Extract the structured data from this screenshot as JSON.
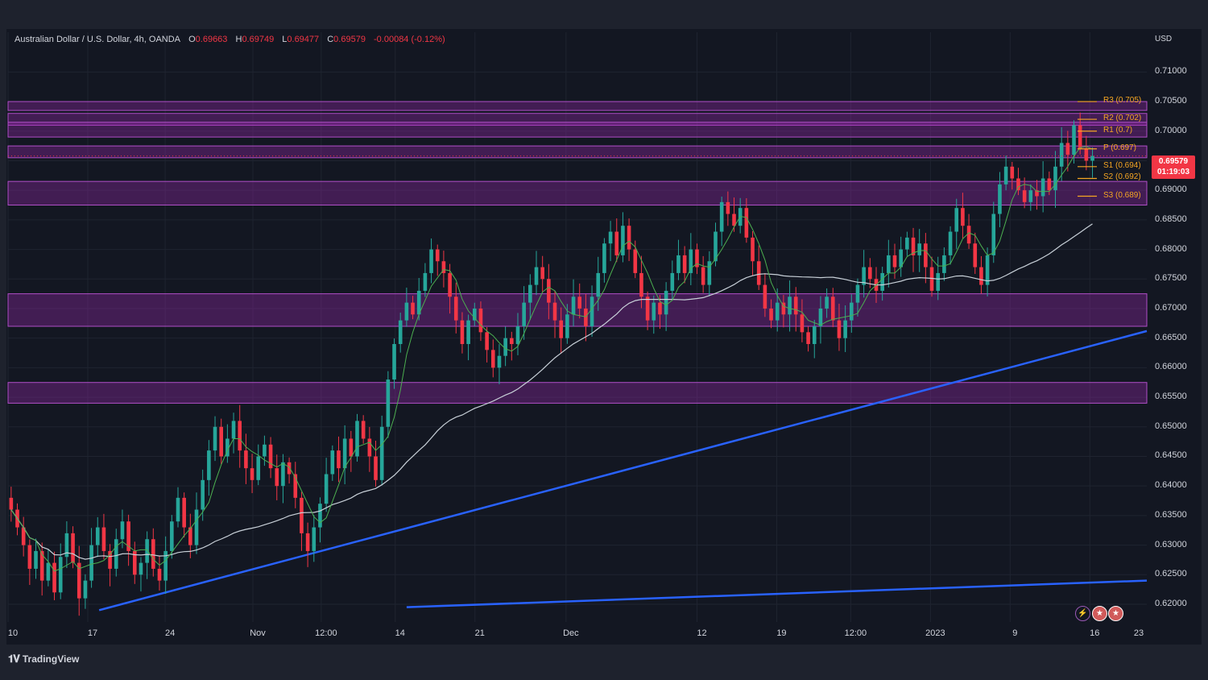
{
  "header": {
    "symbol": "Australian Dollar / U.S. Dollar, 4h, OANDA",
    "open_label": "O",
    "open": "0.69663",
    "high_label": "H",
    "high": "0.69749",
    "low_label": "L",
    "low": "0.69477",
    "close_label": "C",
    "close": "0.69579",
    "change": "-0.00084 (-0.12%)"
  },
  "currency": "USD",
  "last_price": {
    "value": "0.69579",
    "countdown": "01:19:03"
  },
  "pivots": [
    {
      "label": "R3 (0.705)",
      "value": 0.705
    },
    {
      "label": "R2 (0.702)",
      "value": 0.702
    },
    {
      "label": "R1 (0.7)",
      "value": 0.7
    },
    {
      "label": "P (0.697)",
      "value": 0.697
    },
    {
      "label": "S1 (0.694)",
      "value": 0.694
    },
    {
      "label": "S2 (0.692)",
      "value": 0.692
    },
    {
      "label": "S3 (0.689)",
      "value": 0.689
    }
  ],
  "brand": {
    "logo_text": "TradingView"
  },
  "icons": [
    "lightning-icon",
    "us-flag-icon",
    "us-flag-icon"
  ],
  "colors": {
    "bull": "#26a69a",
    "bear": "#f23645",
    "zone": "#9c27b0",
    "trend": "#2962ff",
    "pivot": "#f5a623",
    "ma_fast": "#4caf50",
    "ma_slow": "#c8d0d8"
  },
  "chart_data": {
    "type": "candlestick",
    "title": "Australian Dollar / U.S. Dollar, 4h, OANDA",
    "ylim": [
      0.617,
      0.714
    ],
    "y_ticks": [
      "0.71000",
      "0.70500",
      "0.70000",
      "0.69500",
      "0.69000",
      "0.68500",
      "0.68000",
      "0.67500",
      "0.67000",
      "0.66500",
      "0.66000",
      "0.65500",
      "0.65000",
      "0.64500",
      "0.64000",
      "0.63500",
      "0.63000",
      "0.62500",
      "0.62000"
    ],
    "x_ticks": [
      "10",
      "17",
      "24",
      "Nov",
      "12:00",
      "14",
      "21",
      "Dec",
      "12",
      "19",
      "12:00",
      "2023",
      "9",
      "16",
      "23"
    ],
    "x_tick_pos": [
      0.0,
      0.07,
      0.138,
      0.215,
      0.275,
      0.34,
      0.41,
      0.49,
      0.605,
      0.675,
      0.74,
      0.81,
      0.88,
      0.95,
      1.02
    ],
    "zones": [
      [
        0.7035,
        0.705
      ],
      [
        0.701,
        0.703
      ],
      [
        0.699,
        0.7015
      ],
      [
        0.6955,
        0.6975
      ],
      [
        0.6875,
        0.6915
      ],
      [
        0.667,
        0.6725
      ],
      [
        0.654,
        0.6575
      ]
    ],
    "trendlines": [
      {
        "from": [
          0.08,
          0.619
        ],
        "to": [
          1.0,
          0.6662
        ]
      },
      {
        "from": [
          0.35,
          0.6195
        ],
        "to": [
          1.0,
          0.624
        ]
      }
    ],
    "closes": [
      0.636,
      0.633,
      0.63,
      0.626,
      0.629,
      0.624,
      0.627,
      0.622,
      0.628,
      0.632,
      0.627,
      0.621,
      0.624,
      0.63,
      0.633,
      0.629,
      0.626,
      0.631,
      0.634,
      0.629,
      0.625,
      0.627,
      0.631,
      0.626,
      0.624,
      0.629,
      0.634,
      0.638,
      0.633,
      0.63,
      0.636,
      0.641,
      0.646,
      0.65,
      0.645,
      0.648,
      0.651,
      0.646,
      0.643,
      0.641,
      0.645,
      0.647,
      0.643,
      0.64,
      0.644,
      0.642,
      0.638,
      0.632,
      0.629,
      0.633,
      0.637,
      0.642,
      0.646,
      0.643,
      0.648,
      0.645,
      0.651,
      0.648,
      0.645,
      0.641,
      0.65,
      0.658,
      0.664,
      0.668,
      0.671,
      0.669,
      0.673,
      0.676,
      0.68,
      0.678,
      0.676,
      0.672,
      0.668,
      0.664,
      0.668,
      0.67,
      0.666,
      0.663,
      0.66,
      0.662,
      0.665,
      0.664,
      0.667,
      0.671,
      0.674,
      0.677,
      0.675,
      0.671,
      0.668,
      0.665,
      0.669,
      0.672,
      0.67,
      0.667,
      0.672,
      0.676,
      0.681,
      0.683,
      0.679,
      0.684,
      0.68,
      0.676,
      0.672,
      0.668,
      0.671,
      0.669,
      0.673,
      0.676,
      0.679,
      0.676,
      0.68,
      0.677,
      0.674,
      0.678,
      0.683,
      0.688,
      0.686,
      0.684,
      0.687,
      0.682,
      0.678,
      0.674,
      0.67,
      0.668,
      0.671,
      0.669,
      0.672,
      0.669,
      0.666,
      0.664,
      0.667,
      0.67,
      0.672,
      0.668,
      0.665,
      0.668,
      0.671,
      0.674,
      0.677,
      0.675,
      0.673,
      0.676,
      0.679,
      0.677,
      0.68,
      0.682,
      0.679,
      0.681,
      0.677,
      0.673,
      0.676,
      0.679,
      0.683,
      0.687,
      0.684,
      0.681,
      0.677,
      0.674,
      0.679,
      0.686,
      0.691,
      0.694,
      0.692,
      0.69,
      0.688,
      0.69,
      0.689,
      0.692,
      0.69,
      0.694,
      0.698,
      0.696,
      0.701,
      0.697,
      0.695,
      0.6958
    ]
  }
}
